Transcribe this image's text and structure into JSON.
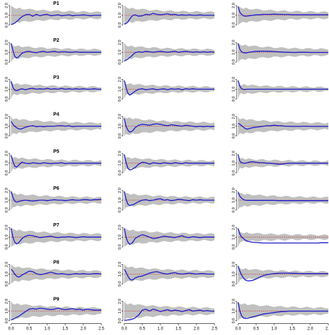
{
  "chart_data": {
    "type": "line",
    "grid": false,
    "legend": "none",
    "layout": {
      "rows": 9,
      "cols": 3
    },
    "row_titles": [
      "P1",
      "P2",
      "P3",
      "P4",
      "P5",
      "P6",
      "P7",
      "P8",
      "P9"
    ],
    "x_ticks": [
      "0.0",
      "0.5",
      "1.0",
      "1.5",
      "2.0",
      "2.5"
    ],
    "y_ticks": [
      "0.0",
      "1.0",
      "2.0"
    ],
    "xlim": [
      0,
      2.5
    ],
    "ylim": [
      0,
      2
    ],
    "reference_value": 1.0,
    "colors": {
      "line": "#1a1acc",
      "band": "#c0c0c0",
      "reference": "#cc3333",
      "axis": "#000000"
    },
    "series_x": [
      0,
      0.05,
      0.1,
      0.15,
      0.2,
      0.25,
      0.3,
      0.4,
      0.5,
      0.6,
      0.7,
      0.8,
      0.9,
      1.0,
      1.1,
      1.2,
      1.3,
      1.4,
      1.5,
      1.6,
      1.7,
      1.8,
      1.9,
      2.0,
      2.1,
      2.2,
      2.3,
      2.4,
      2.5
    ],
    "panels": [
      {
        "row": 0,
        "col": 0,
        "values": [
          0.05,
          0.1,
          0.2,
          0.35,
          0.5,
          0.7,
          0.85,
          1.05,
          1.1,
          0.9,
          1.1,
          0.95,
          1.05,
          1.1,
          0.95,
          1.0,
          1.05,
          0.95,
          1.0,
          1.05,
          0.95,
          1.0,
          1.0,
          1.05,
          1.0,
          0.95,
          1.0,
          1.0,
          1.0
        ],
        "band_width": 0.8
      },
      {
        "row": 0,
        "col": 1,
        "values": [
          0.1,
          0.15,
          0.3,
          0.6,
          0.85,
          1.0,
          1.05,
          0.9,
          0.95,
          1.1,
          1.05,
          1.2,
          1.1,
          1.05,
          1.1,
          1.15,
          1.05,
          1.1,
          1.0,
          1.05,
          1.0,
          1.05,
          1.0,
          1.0,
          1.05,
          1.0,
          1.0,
          1.0,
          1.0
        ],
        "band_width": 0.8
      },
      {
        "row": 0,
        "col": 2,
        "values": [
          1.9,
          1.3,
          1.1,
          0.95,
          0.9,
          0.92,
          0.95,
          1.0,
          1.05,
          1.05,
          1.1,
          1.1,
          1.1,
          1.12,
          1.1,
          1.1,
          1.08,
          1.08,
          1.05,
          1.05,
          1.05,
          1.05,
          1.05,
          1.05,
          1.05,
          1.05,
          1.05,
          1.05,
          1.05
        ],
        "band_width": 0.8
      },
      {
        "row": 1,
        "col": 0,
        "values": [
          1.9,
          1.2,
          0.6,
          0.4,
          0.5,
          0.7,
          0.9,
          1.05,
          1.1,
          1.0,
          0.95,
          1.05,
          1.1,
          1.0,
          1.05,
          1.1,
          1.0,
          1.05,
          1.05,
          1.0,
          1.0,
          1.05,
          1.0,
          1.0,
          1.0,
          1.0,
          1.0,
          1.0,
          1.0
        ],
        "band_width": 0.7
      },
      {
        "row": 1,
        "col": 1,
        "values": [
          0.1,
          0.2,
          0.3,
          0.45,
          0.6,
          0.8,
          0.95,
          1.05,
          1.0,
          1.1,
          1.05,
          1.0,
          1.05,
          1.1,
          1.05,
          1.0,
          1.05,
          1.1,
          1.0,
          1.05,
          1.1,
          1.05,
          1.0,
          1.05,
          1.0,
          1.05,
          1.0,
          1.05,
          1.0
        ],
        "band_width": 0.7
      },
      {
        "row": 1,
        "col": 2,
        "values": [
          1.9,
          1.3,
          1.05,
          0.95,
          0.92,
          0.95,
          1.0,
          1.05,
          1.1,
          1.1,
          1.12,
          1.1,
          1.1,
          1.08,
          1.05,
          1.03,
          1.0,
          1.0,
          0.98,
          0.98,
          1.0,
          1.0,
          1.0,
          0.98,
          0.98,
          0.98,
          0.98,
          0.98,
          0.98
        ],
        "band_width": 0.8
      },
      {
        "row": 2,
        "col": 0,
        "values": [
          1.8,
          1.2,
          0.9,
          0.85,
          0.9,
          1.0,
          1.05,
          0.95,
          1.05,
          1.1,
          1.0,
          1.05,
          1.0,
          1.1,
          1.0,
          1.05,
          1.0,
          1.1,
          1.0,
          1.05,
          1.0,
          1.05,
          1.0,
          1.05,
          1.0,
          1.0,
          1.05,
          1.0,
          1.0
        ],
        "band_width": 0.6
      },
      {
        "row": 2,
        "col": 1,
        "values": [
          1.9,
          1.2,
          0.6,
          0.4,
          0.5,
          0.65,
          0.8,
          1.0,
          1.05,
          0.95,
          1.0,
          1.05,
          0.95,
          1.0,
          1.05,
          0.95,
          1.05,
          1.0,
          1.05,
          0.95,
          1.05,
          1.0,
          1.05,
          1.0,
          1.0,
          1.0,
          1.0,
          1.0,
          1.0
        ],
        "band_width": 0.6
      },
      {
        "row": 2,
        "col": 2,
        "values": [
          1.9,
          1.3,
          1.05,
          0.98,
          0.98,
          1.0,
          1.0,
          1.0,
          1.0,
          1.0,
          1.0,
          1.0,
          1.0,
          1.0,
          1.0,
          1.0,
          1.0,
          1.0,
          1.0,
          1.0,
          1.0,
          1.0,
          1.0,
          1.0,
          1.0,
          1.0,
          1.0,
          1.0,
          1.0
        ],
        "band_width": 0.5
      },
      {
        "row": 3,
        "col": 0,
        "values": [
          1.5,
          1.2,
          1.0,
          0.85,
          0.75,
          0.7,
          0.75,
          0.9,
          1.0,
          1.05,
          0.95,
          1.0,
          0.95,
          1.0,
          1.0,
          1.0,
          1.05,
          1.05,
          1.0,
          1.05,
          0.95,
          1.0,
          1.0,
          1.0,
          1.0,
          1.0,
          1.0,
          1.0,
          1.0
        ],
        "band_width": 0.8
      },
      {
        "row": 3,
        "col": 1,
        "values": [
          1.8,
          1.0,
          0.6,
          0.4,
          0.45,
          0.6,
          0.85,
          1.1,
          1.2,
          1.15,
          1.1,
          1.2,
          1.25,
          1.2,
          1.1,
          1.05,
          1.15,
          1.1,
          1.05,
          1.0,
          1.1,
          1.05,
          1.0,
          0.95,
          1.0,
          0.95,
          1.0,
          0.95,
          1.0
        ],
        "band_width": 0.9
      },
      {
        "row": 3,
        "col": 2,
        "values": [
          1.3,
          1.2,
          1.05,
          0.9,
          0.75,
          0.7,
          0.75,
          0.85,
          0.9,
          0.95,
          1.0,
          1.05,
          1.05,
          1.1,
          1.05,
          1.05,
          1.0,
          1.0,
          0.98,
          0.98,
          0.98,
          1.0,
          1.0,
          0.98,
          0.98,
          0.98,
          0.98,
          0.98,
          0.98
        ],
        "band_width": 0.8
      },
      {
        "row": 4,
        "col": 0,
        "values": [
          1.8,
          1.2,
          0.7,
          0.6,
          0.75,
          0.95,
          1.1,
          1.0,
          0.95,
          1.05,
          1.0,
          0.95,
          1.05,
          1.0,
          0.95,
          1.0,
          1.0,
          1.05,
          0.95,
          1.0,
          1.0,
          1.0,
          1.0,
          1.0,
          1.0,
          1.0,
          1.0,
          1.0,
          1.0
        ],
        "band_width": 0.6
      },
      {
        "row": 4,
        "col": 1,
        "values": [
          1.9,
          1.1,
          0.5,
          0.3,
          0.35,
          0.45,
          0.55,
          0.9,
          1.1,
          1.05,
          0.9,
          1.05,
          1.0,
          0.95,
          1.05,
          1.0,
          0.95,
          1.05,
          1.0,
          0.95,
          1.05,
          1.0,
          1.0,
          1.0,
          1.0,
          1.0,
          1.0,
          1.0,
          1.0
        ],
        "band_width": 0.6
      },
      {
        "row": 4,
        "col": 2,
        "values": [
          1.9,
          1.2,
          1.05,
          1.0,
          1.0,
          1.05,
          1.1,
          1.15,
          1.1,
          1.05,
          1.05,
          1.0,
          1.0,
          0.95,
          0.9,
          0.9,
          0.95,
          1.0,
          1.0,
          1.0,
          1.0,
          1.0,
          1.0,
          1.0,
          1.0,
          1.0,
          1.0,
          1.0,
          1.0
        ],
        "band_width": 0.5
      },
      {
        "row": 5,
        "col": 0,
        "values": [
          1.9,
          1.3,
          0.9,
          0.8,
          0.85,
          0.9,
          0.95,
          1.0,
          0.95,
          0.9,
          0.95,
          1.0,
          1.0,
          0.95,
          1.0,
          1.05,
          1.0,
          1.0,
          0.95,
          1.0,
          1.05,
          1.0,
          1.0,
          1.05,
          1.05,
          1.0,
          1.05,
          1.05,
          1.1
        ],
        "band_width": 0.7
      },
      {
        "row": 5,
        "col": 1,
        "values": [
          1.9,
          1.1,
          0.6,
          0.45,
          0.5,
          0.55,
          0.65,
          0.85,
          1.0,
          1.05,
          0.95,
          1.0,
          1.1,
          1.15,
          1.0,
          1.05,
          0.95,
          1.0,
          1.1,
          1.05,
          1.0,
          0.95,
          1.05,
          1.0,
          1.05,
          1.0,
          1.0,
          1.0,
          1.0
        ],
        "band_width": 0.7
      },
      {
        "row": 5,
        "col": 2,
        "values": [
          1.8,
          1.4,
          1.2,
          1.05,
          1.0,
          0.98,
          0.98,
          0.98,
          0.98,
          0.98,
          0.98,
          0.98,
          0.98,
          0.98,
          0.95,
          0.95,
          0.95,
          0.95,
          0.95,
          0.95,
          0.95,
          0.95,
          0.95,
          0.95,
          0.95,
          0.95,
          0.95,
          0.95,
          0.95
        ],
        "band_width": 0.7
      },
      {
        "row": 6,
        "col": 0,
        "values": [
          1.9,
          1.0,
          0.5,
          0.3,
          0.4,
          0.6,
          0.85,
          1.1,
          1.2,
          1.15,
          1.05,
          0.95,
          1.0,
          1.05,
          1.1,
          1.0,
          0.95,
          1.0,
          1.0,
          1.05,
          1.0,
          0.95,
          1.0,
          1.05,
          1.0,
          1.0,
          1.0,
          1.0,
          1.0
        ],
        "band_width": 0.8
      },
      {
        "row": 6,
        "col": 1,
        "values": [
          1.9,
          1.0,
          0.5,
          0.25,
          0.35,
          0.55,
          0.85,
          1.1,
          1.25,
          1.15,
          1.0,
          0.85,
          0.9,
          1.0,
          1.1,
          1.05,
          1.0,
          0.95,
          1.05,
          1.15,
          1.0,
          0.95,
          1.05,
          1.0,
          0.95,
          1.0,
          1.0,
          1.0,
          1.0
        ],
        "band_width": 0.8
      },
      {
        "row": 6,
        "col": 2,
        "values": [
          1.9,
          1.3,
          1.0,
          0.85,
          0.7,
          0.6,
          0.55,
          0.48,
          0.45,
          0.42,
          0.4,
          0.4,
          0.4,
          0.4,
          0.4,
          0.4,
          0.4,
          0.4,
          0.4,
          0.4,
          0.4,
          0.4,
          0.4,
          0.4,
          0.4,
          0.4,
          0.42,
          0.42,
          0.42
        ],
        "band_width": 0.5
      },
      {
        "row": 7,
        "col": 0,
        "values": [
          1.5,
          1.3,
          1.0,
          0.8,
          0.7,
          0.75,
          0.9,
          1.1,
          1.3,
          1.25,
          1.05,
          0.95,
          1.0,
          1.1,
          1.2,
          1.1,
          1.0,
          1.05,
          1.0,
          0.95,
          1.0,
          1.05,
          1.0,
          1.05,
          1.0,
          1.0,
          1.05,
          1.05,
          1.0
        ],
        "band_width": 0.8
      },
      {
        "row": 7,
        "col": 1,
        "values": [
          1.5,
          1.2,
          0.8,
          0.5,
          0.4,
          0.45,
          0.6,
          0.75,
          0.8,
          0.95,
          1.1,
          1.2,
          1.25,
          1.15,
          1.05,
          1.0,
          1.1,
          1.15,
          1.05,
          1.0,
          1.05,
          1.1,
          1.05,
          1.0,
          1.05,
          1.05,
          1.0,
          1.0,
          1.0
        ],
        "band_width": 0.8
      },
      {
        "row": 7,
        "col": 2,
        "values": [
          1.8,
          1.3,
          0.9,
          0.6,
          0.4,
          0.32,
          0.3,
          0.35,
          0.5,
          0.7,
          0.85,
          0.95,
          1.0,
          1.05,
          1.08,
          1.1,
          1.1,
          1.1,
          1.08,
          1.08,
          1.06,
          1.05,
          1.05,
          1.05,
          1.05,
          1.05,
          1.05,
          1.05,
          1.05
        ],
        "band_width": 0.6
      },
      {
        "row": 8,
        "col": 0,
        "values": [
          0.1,
          0.15,
          0.25,
          0.35,
          0.45,
          0.55,
          0.7,
          0.95,
          1.2,
          1.25,
          1.2,
          1.3,
          1.25,
          1.2,
          1.15,
          1.2,
          1.3,
          1.2,
          1.15,
          1.2,
          1.25,
          1.15,
          1.2,
          1.1,
          1.2,
          1.15,
          1.1,
          1.1,
          1.1
        ],
        "band_width": 0.8
      },
      {
        "row": 8,
        "col": 1,
        "values": [
          0.05,
          0.05,
          0.1,
          0.1,
          0.15,
          0.2,
          0.3,
          0.6,
          1.1,
          1.2,
          1.0,
          1.2,
          1.1,
          0.95,
          1.05,
          1.15,
          1.0,
          1.1,
          1.05,
          0.95,
          1.05,
          1.15,
          1.0,
          1.05,
          1.1,
          1.0,
          1.05,
          1.0,
          1.0
        ],
        "band_width": 0.8
      },
      {
        "row": 8,
        "col": 2,
        "values": [
          1.9,
          1.0,
          0.5,
          0.3,
          0.25,
          0.25,
          0.3,
          0.4,
          0.5,
          0.6,
          0.7,
          0.75,
          0.8,
          0.85,
          0.9,
          0.95,
          0.95,
          1.0,
          1.0,
          1.0,
          1.0,
          1.0,
          1.0,
          1.0,
          1.0,
          1.0,
          1.0,
          1.0,
          1.0
        ],
        "band_width": 0.8
      }
    ]
  }
}
